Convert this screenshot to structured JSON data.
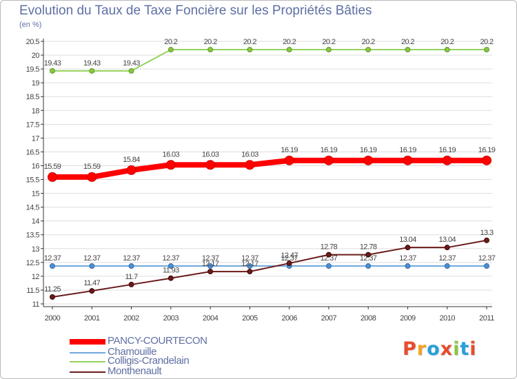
{
  "colors": {
    "title": "#5e6fa3",
    "axis": "#333333",
    "grid": "#dddddd",
    "label": "#444444",
    "logo": [
      "#e94b2a",
      "#f4a21e",
      "#2a9fd8",
      "#e94b2a",
      "#8cc63f",
      "#2a9fd8"
    ]
  },
  "legend": [
    {
      "name": "PANCY-COURTECON",
      "color": "#ff0000",
      "thickness": 8
    },
    {
      "name": "Chamouille",
      "color": "#6fa8dc",
      "thickness": 2
    },
    {
      "name": "Colligis-Crandelain",
      "color": "#93d35c",
      "thickness": 2
    },
    {
      "name": "Monthenault",
      "color": "#6b1a1a",
      "thickness": 2
    }
  ],
  "logo_text": "Proxiti",
  "chart_data": {
    "type": "line",
    "title": "Evolution du Taux de Taxe Foncière sur les Propriétés Bâties",
    "ylabel": "(en %)",
    "xlabel": "",
    "x": [
      "2000",
      "2001",
      "2002",
      "2003",
      "2004",
      "2005",
      "2006",
      "2007",
      "2008",
      "2009",
      "2010",
      "2011"
    ],
    "ylim": [
      11,
      20.5
    ],
    "yticks": [
      "11",
      "11.5",
      "12",
      "12.5",
      "13",
      "13.5",
      "14",
      "14.5",
      "15",
      "15.5",
      "16",
      "16.5",
      "17",
      "17.5",
      "18",
      "18.5",
      "19",
      "19.5",
      "20",
      "20.5"
    ],
    "series": [
      {
        "name": "Colligis-Crandelain",
        "color": "#93d35c",
        "lineWidth": 2,
        "markerRadius": 3.5,
        "markerColor": "#8cc63f",
        "markerStroke": "#5c9a2e",
        "values": [
          19.43,
          19.43,
          19.43,
          20.2,
          20.2,
          20.2,
          20.2,
          20.2,
          20.2,
          20.2,
          20.2,
          20.2
        ],
        "labels": [
          "19.43",
          "19.43",
          "19.43",
          "20.2",
          "20.2",
          "20.2",
          "20.2",
          "20.2",
          "20.2",
          "20.2",
          "20.2",
          "20.2"
        ]
      },
      {
        "name": "PANCY-COURTECON",
        "color": "#ff0000",
        "lineWidth": 8,
        "markerRadius": 6.5,
        "markerColor": "#ff0000",
        "markerStroke": "#cc0000",
        "values": [
          15.59,
          15.59,
          15.84,
          16.03,
          16.03,
          16.03,
          16.19,
          16.19,
          16.19,
          16.19,
          16.19,
          16.19
        ],
        "labels": [
          "15.59",
          "15.59",
          "15.84",
          "16.03",
          "16.03",
          "16.03",
          "16.19",
          "16.19",
          "16.19",
          "16.19",
          "16.19",
          "16.19"
        ]
      },
      {
        "name": "Chamouille",
        "color": "#6fa8dc",
        "lineWidth": 2,
        "markerRadius": 3.5,
        "markerColor": "#4f8fd0",
        "markerStroke": "#2e6aa8",
        "values": [
          12.37,
          12.37,
          12.37,
          12.37,
          12.37,
          12.37,
          12.37,
          12.37,
          12.37,
          12.37,
          12.37,
          12.37
        ],
        "labels": [
          "12.37",
          "12.37",
          "12.37",
          "12.37",
          "12.37",
          "12.37",
          "12.37",
          "12.37",
          "12.37",
          "12.37",
          "12.37",
          "12.37"
        ]
      },
      {
        "name": "Monthenault",
        "color": "#6b1a1a",
        "lineWidth": 2,
        "markerRadius": 3.5,
        "markerColor": "#6b1a1a",
        "markerStroke": "#3a0a0a",
        "values": [
          11.25,
          11.47,
          11.7,
          11.93,
          12.17,
          12.17,
          12.47,
          12.78,
          12.78,
          13.04,
          13.04,
          13.3
        ],
        "labels": [
          "11.25",
          "11.47",
          "11.7",
          "11.93",
          "12.17",
          "12.17",
          "12.47",
          "12.78",
          "12.78",
          "13.04",
          "13.04",
          "13.3"
        ]
      }
    ]
  }
}
